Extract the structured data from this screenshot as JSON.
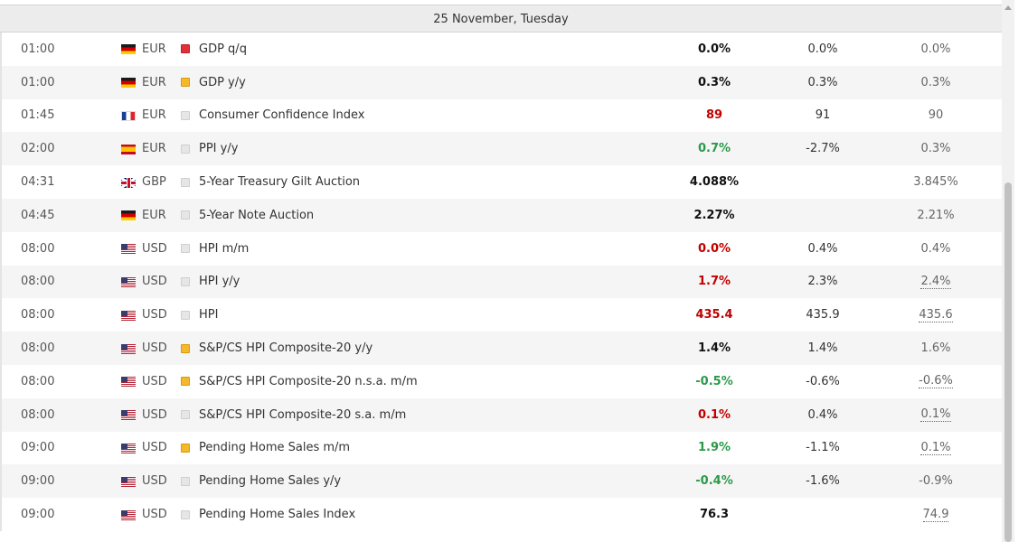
{
  "day_header": "25 November, Tuesday",
  "rows": [
    {
      "time": "01:00",
      "flag": "de-flag-icon",
      "currency": "EUR",
      "impact": "high",
      "event": "GDP q/q",
      "actual": "0.0%",
      "actual_tone": "neutral",
      "forecast": "0.0%",
      "previous": "0.0%",
      "previous_revised": false
    },
    {
      "time": "01:00",
      "flag": "de-flag-icon",
      "currency": "EUR",
      "impact": "medium",
      "event": "GDP y/y",
      "actual": "0.3%",
      "actual_tone": "neutral",
      "forecast": "0.3%",
      "previous": "0.3%",
      "previous_revised": false
    },
    {
      "time": "01:45",
      "flag": "fr-flag-icon",
      "currency": "EUR",
      "impact": "low",
      "event": "Consumer Confidence Index",
      "actual": "89",
      "actual_tone": "worse",
      "forecast": "91",
      "previous": "90",
      "previous_revised": false
    },
    {
      "time": "02:00",
      "flag": "es-flag-icon",
      "currency": "EUR",
      "impact": "low",
      "event": "PPI y/y",
      "actual": "0.7%",
      "actual_tone": "better",
      "forecast": "-2.7%",
      "previous": "0.3%",
      "previous_revised": false
    },
    {
      "time": "04:31",
      "flag": "gb-flag-icon",
      "currency": "GBP",
      "impact": "low",
      "event": "5-Year Treasury Gilt Auction",
      "actual": "4.088%",
      "actual_tone": "neutral",
      "forecast": "",
      "previous": "3.845%",
      "previous_revised": false
    },
    {
      "time": "04:45",
      "flag": "de-flag-icon",
      "currency": "EUR",
      "impact": "low",
      "event": "5-Year Note Auction",
      "actual": "2.27%",
      "actual_tone": "neutral",
      "forecast": "",
      "previous": "2.21%",
      "previous_revised": false
    },
    {
      "time": "08:00",
      "flag": "us-flag-icon",
      "currency": "USD",
      "impact": "low",
      "event": "HPI m/m",
      "actual": "0.0%",
      "actual_tone": "worse",
      "forecast": "0.4%",
      "previous": "0.4%",
      "previous_revised": false
    },
    {
      "time": "08:00",
      "flag": "us-flag-icon",
      "currency": "USD",
      "impact": "low",
      "event": "HPI y/y",
      "actual": "1.7%",
      "actual_tone": "worse",
      "forecast": "2.3%",
      "previous": "2.4%",
      "previous_revised": true
    },
    {
      "time": "08:00",
      "flag": "us-flag-icon",
      "currency": "USD",
      "impact": "low",
      "event": "HPI",
      "actual": "435.4",
      "actual_tone": "worse",
      "forecast": "435.9",
      "previous": "435.6",
      "previous_revised": true
    },
    {
      "time": "08:00",
      "flag": "us-flag-icon",
      "currency": "USD",
      "impact": "medium",
      "event": "S&P/CS HPI Composite-20 y/y",
      "actual": "1.4%",
      "actual_tone": "neutral",
      "forecast": "1.4%",
      "previous": "1.6%",
      "previous_revised": false
    },
    {
      "time": "08:00",
      "flag": "us-flag-icon",
      "currency": "USD",
      "impact": "medium",
      "event": "S&P/CS HPI Composite-20 n.s.a. m/m",
      "actual": "-0.5%",
      "actual_tone": "better",
      "forecast": "-0.6%",
      "previous": "-0.6%",
      "previous_revised": true
    },
    {
      "time": "08:00",
      "flag": "us-flag-icon",
      "currency": "USD",
      "impact": "low",
      "event": "S&P/CS HPI Composite-20 s.a. m/m",
      "actual": "0.1%",
      "actual_tone": "worse",
      "forecast": "0.4%",
      "previous": "0.1%",
      "previous_revised": true
    },
    {
      "time": "09:00",
      "flag": "us-flag-icon",
      "currency": "USD",
      "impact": "medium",
      "event": "Pending Home Sales m/m",
      "actual": "1.9%",
      "actual_tone": "better",
      "forecast": "-1.1%",
      "previous": "0.1%",
      "previous_revised": true
    },
    {
      "time": "09:00",
      "flag": "us-flag-icon",
      "currency": "USD",
      "impact": "low",
      "event": "Pending Home Sales y/y",
      "actual": "-0.4%",
      "actual_tone": "better",
      "forecast": "-1.6%",
      "previous": "-0.9%",
      "previous_revised": false
    },
    {
      "time": "09:00",
      "flag": "us-flag-icon",
      "currency": "USD",
      "impact": "low",
      "event": "Pending Home Sales Index",
      "actual": "76.3",
      "actual_tone": "neutral",
      "forecast": "",
      "previous": "74.9",
      "previous_revised": true
    }
  ],
  "colors": {
    "worse": "#c00000",
    "better": "#2a9a48",
    "neutral": "#111111",
    "impact_high": "#e0303a",
    "impact_medium": "#f5b82a",
    "impact_low": "#e6e6e6"
  }
}
